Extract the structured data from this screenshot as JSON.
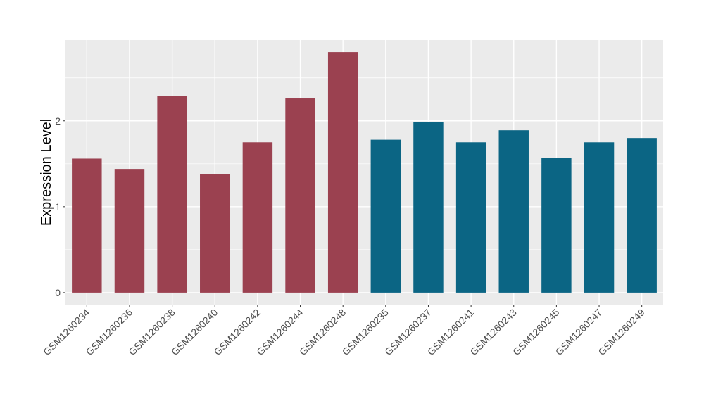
{
  "chart_data": {
    "type": "bar",
    "title": "",
    "xlabel": "",
    "ylabel": "Expression Level",
    "ylim": [
      -0.14,
      2.94
    ],
    "yticks": [
      0,
      1,
      2
    ],
    "grid": true,
    "legend": "none",
    "categories": [
      "GSM1260234",
      "GSM1260236",
      "GSM1260238",
      "GSM1260240",
      "GSM1260242",
      "GSM1260244",
      "GSM1260248",
      "GSM1260235",
      "GSM1260237",
      "GSM1260241",
      "GSM1260243",
      "GSM1260245",
      "GSM1260247",
      "GSM1260249"
    ],
    "values": [
      1.56,
      1.44,
      2.29,
      1.38,
      1.75,
      2.26,
      2.8,
      1.78,
      1.99,
      1.75,
      1.89,
      1.57,
      1.75,
      1.8
    ],
    "bar_colors": [
      "#9b4150",
      "#9b4150",
      "#9b4150",
      "#9b4150",
      "#9b4150",
      "#9b4150",
      "#9b4150",
      "#0b6584",
      "#0b6584",
      "#0b6584",
      "#0b6584",
      "#0b6584",
      "#0b6584",
      "#0b6584"
    ],
    "panel_background": "#ebebeb",
    "grid_color": "#ffffff"
  }
}
